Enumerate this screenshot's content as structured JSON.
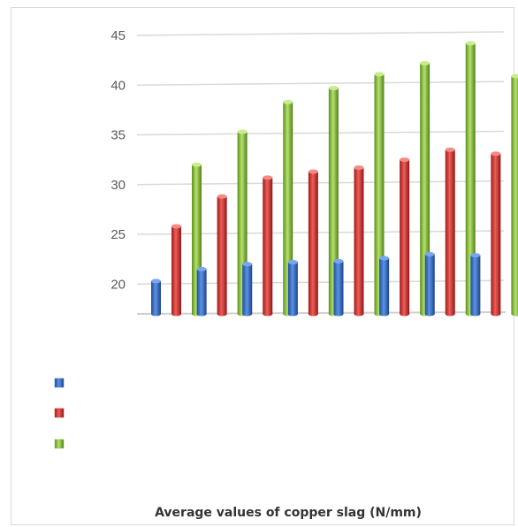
{
  "chart_data": {
    "type": "bar",
    "style": "3d-cylinder",
    "categories": [
      "",
      "",
      "",
      "",
      "",
      "",
      "",
      ""
    ],
    "series": [
      {
        "values": [
          20.3,
          21.5,
          22.0,
          22.2,
          22.3,
          22.6,
          23.0,
          22.9
        ],
        "color": "#3b72c8"
      },
      {
        "values": [
          25.8,
          28.8,
          30.7,
          31.3,
          31.7,
          32.5,
          33.5,
          33.1
        ],
        "color": "#d9312f"
      },
      {
        "values": [
          32.0,
          35.3,
          38.3,
          39.7,
          41.1,
          42.2,
          44.2,
          40.9
        ],
        "color": "#8dc63f"
      }
    ],
    "yticks": [
      20,
      25,
      30,
      35,
      40,
      45
    ],
    "ylim": [
      17,
      45
    ],
    "grid": true,
    "legend": "bottom-left",
    "xlabel": "Average values of copper  slag (N/mm)"
  }
}
